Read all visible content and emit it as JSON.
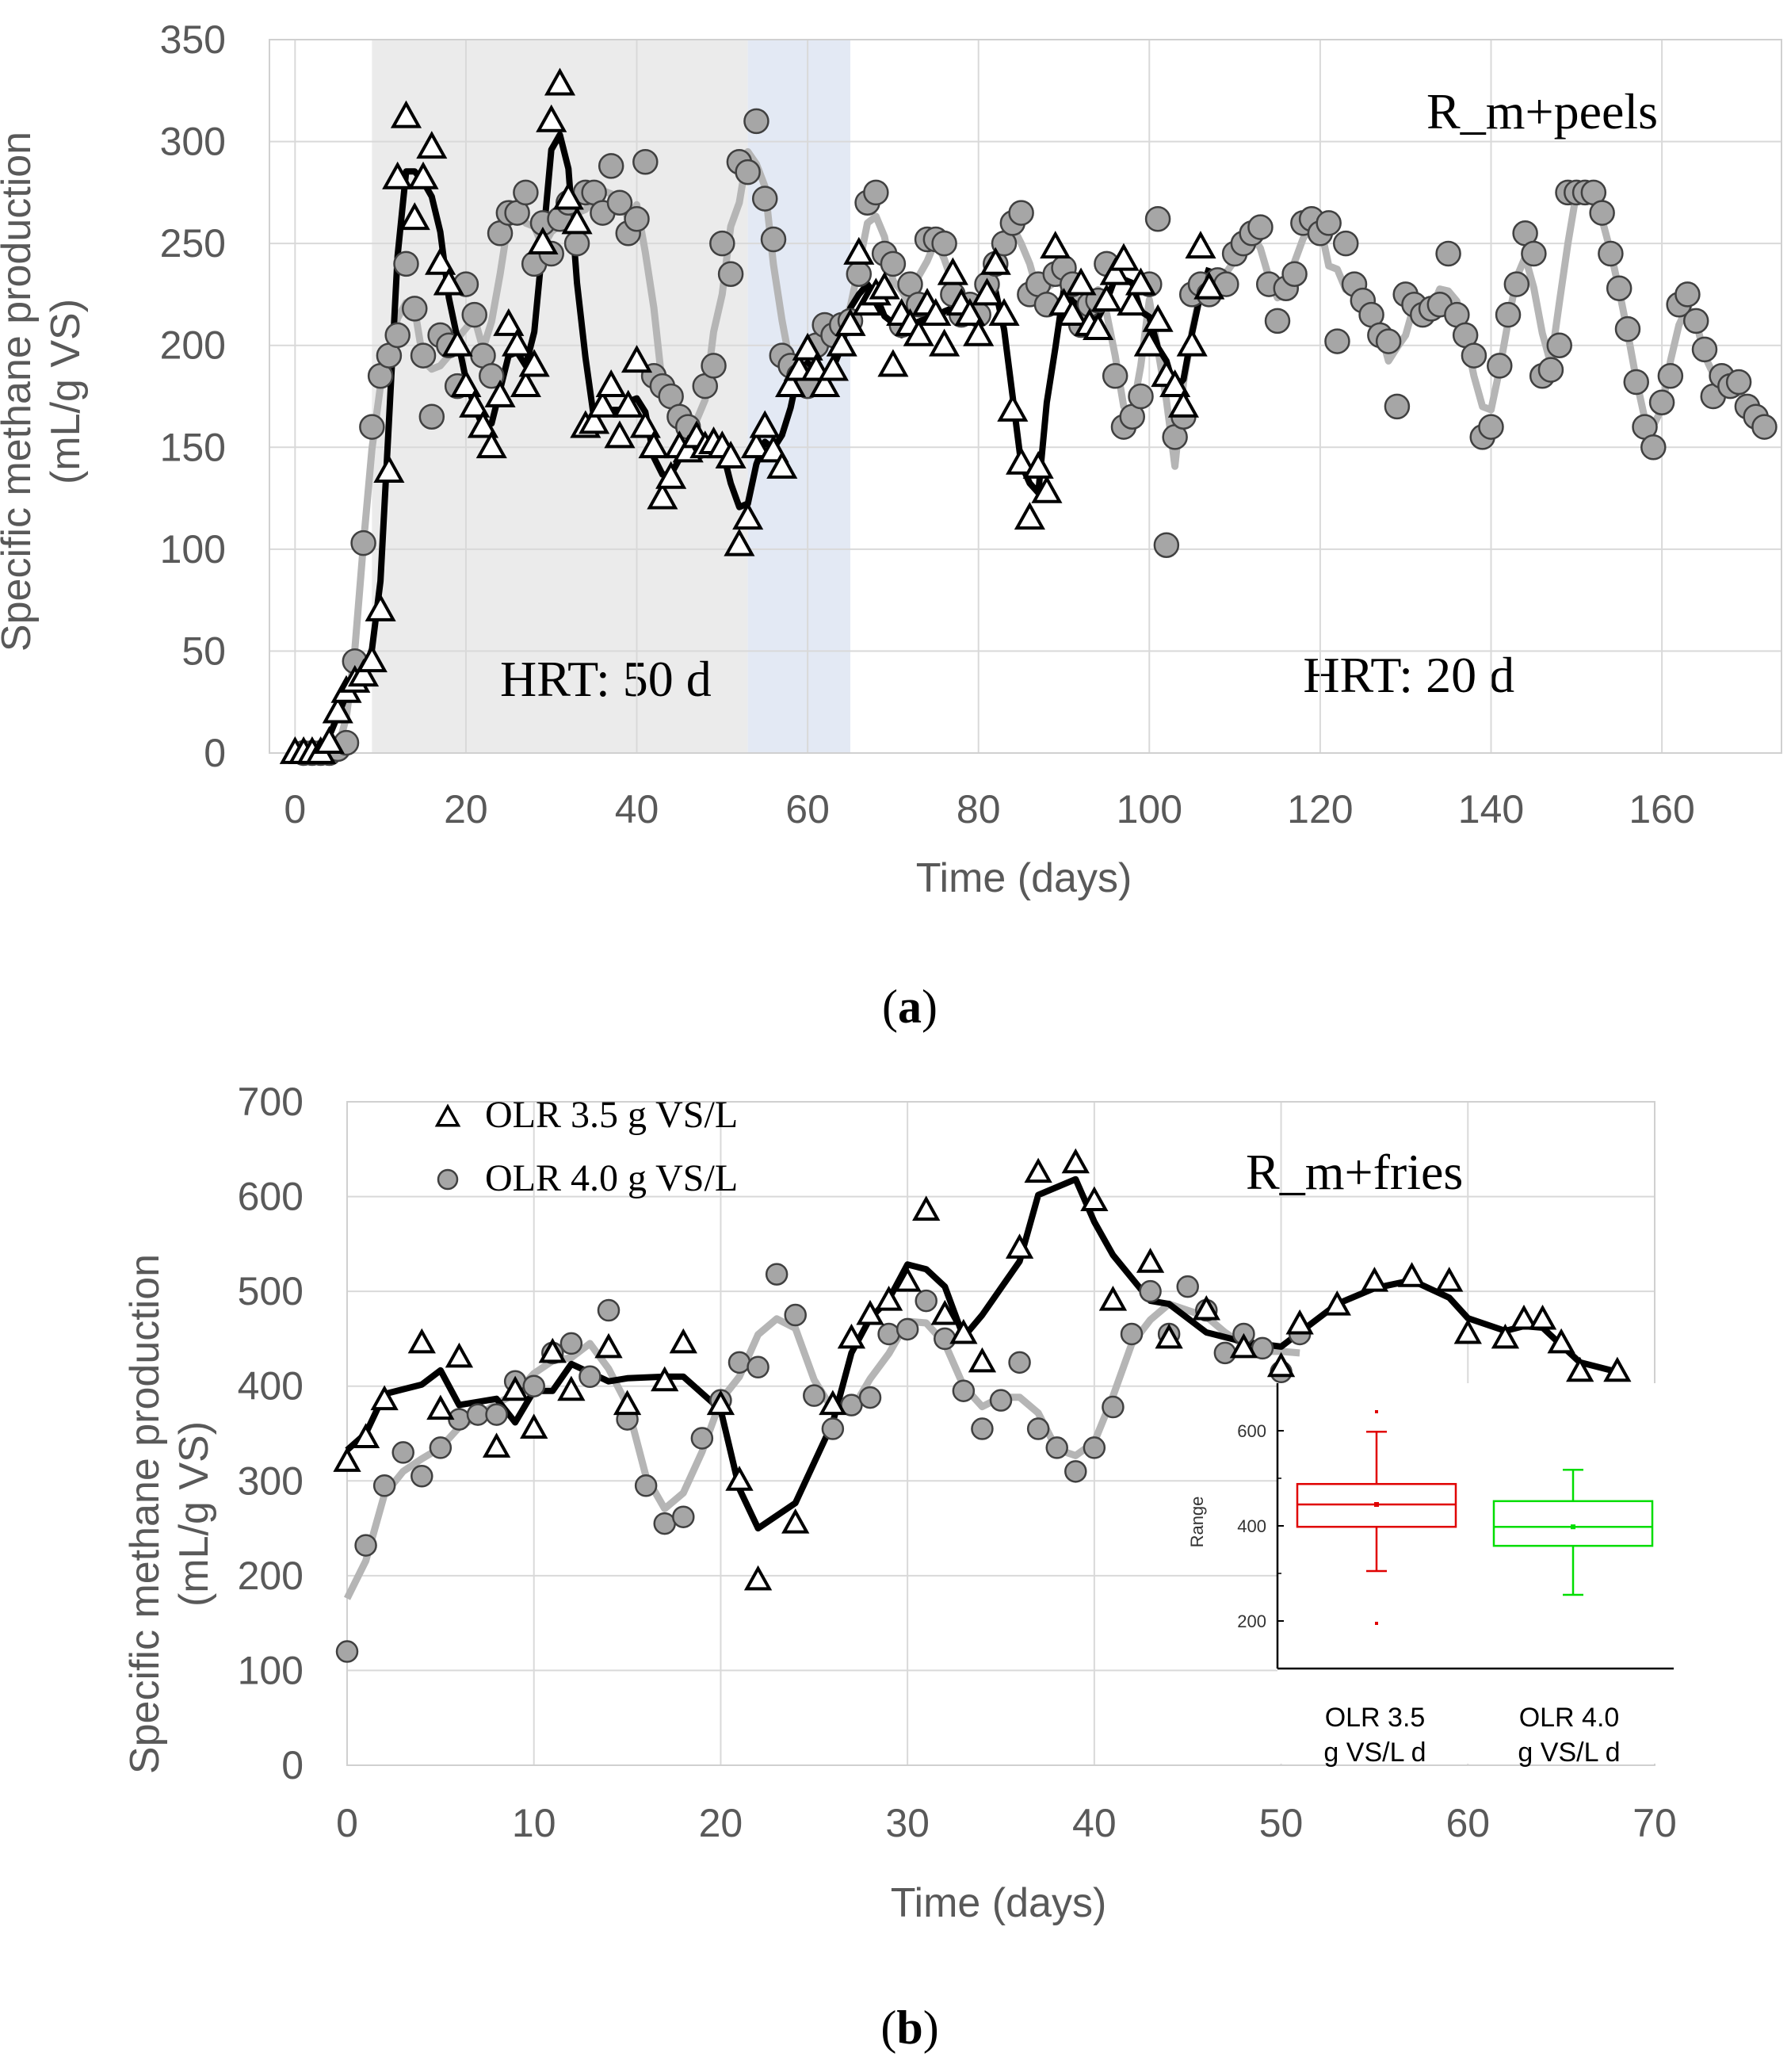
{
  "chart_data": [
    {
      "type": "line",
      "panel": "a",
      "caption": "a",
      "title": "",
      "annotation": "R_m+peels",
      "xlabel": "Time (days)",
      "ylabel": "Specific methane production",
      "ylabel2": "(mL/g VS)",
      "xlim": [
        -3,
        174
      ],
      "ylim": [
        0,
        350
      ],
      "xticks": [
        0,
        20,
        40,
        60,
        80,
        100,
        120,
        140,
        160
      ],
      "yticks": [
        0,
        50,
        100,
        150,
        200,
        250,
        300,
        350
      ],
      "grid": true,
      "regions": [
        {
          "x0": 9,
          "x1": 53,
          "color": "#ebebeb",
          "label": "HRT: 50 d",
          "label_x": 24,
          "label_y": 28
        },
        {
          "x0": 53,
          "x1": 65,
          "color": "#e3e9f4",
          "label": ""
        },
        {
          "x0": 65,
          "x1": 174,
          "color": "none",
          "label": "HRT: 20 d",
          "label_x": 118,
          "label_y": 30
        }
      ],
      "series": [
        {
          "name": "Triangles",
          "marker": "triangle",
          "x": [
            0,
            1,
            2,
            3,
            4,
            5,
            6,
            7,
            8,
            9,
            10,
            11,
            12,
            13,
            14,
            15,
            16,
            17,
            18,
            19,
            20,
            21,
            22,
            23,
            24,
            25,
            26,
            27,
            28,
            29,
            30,
            31,
            32,
            33,
            34,
            35,
            36,
            37,
            38,
            39,
            40,
            41,
            42,
            43,
            44,
            45,
            46,
            47,
            48,
            49,
            50,
            51,
            52,
            53,
            54,
            55,
            56,
            57,
            58,
            59,
            60,
            61,
            62,
            63,
            64,
            65,
            66,
            67,
            68,
            69,
            70,
            71,
            72,
            73,
            74,
            75,
            76,
            77,
            78,
            79,
            80,
            81,
            82,
            83,
            84,
            85,
            86,
            87,
            88,
            89,
            90,
            91,
            92,
            93,
            94,
            95,
            96,
            97,
            98,
            99,
            100,
            101,
            102,
            103,
            104,
            105,
            106,
            107
          ],
          "values": [
            0,
            0,
            0,
            0,
            5,
            20,
            30,
            35,
            38,
            45,
            70,
            138,
            282,
            312,
            262,
            282,
            297,
            240,
            230,
            200,
            180,
            170,
            160,
            150,
            175,
            210,
            200,
            180,
            190,
            250,
            310,
            328,
            272,
            260,
            160,
            162,
            170,
            180,
            155,
            170,
            192,
            160,
            150,
            125,
            135,
            150,
            148,
            155,
            150,
            152,
            150,
            145,
            102,
            115,
            150,
            160,
            148,
            140,
            180,
            188,
            198,
            188,
            180,
            188,
            200,
            210,
            245,
            220,
            225,
            228,
            190,
            215,
            210,
            205,
            220,
            215,
            200,
            235,
            220,
            215,
            205,
            225,
            240,
            215,
            168,
            142,
            115,
            140,
            128,
            248,
            220,
            215,
            230,
            210,
            208,
            222,
            235,
            242,
            220,
            230,
            200,
            212,
            185,
            180,
            170,
            200,
            248,
            228
          ]
        },
        {
          "name": "Circles",
          "marker": "circle",
          "x": [
            1,
            2,
            3,
            4,
            5,
            6,
            7,
            8,
            9,
            10,
            11,
            12,
            13,
            14,
            15,
            16,
            17,
            18,
            19,
            20,
            21,
            22,
            23,
            24,
            25,
            26,
            27,
            28,
            29,
            30,
            31,
            32,
            33,
            34,
            35,
            36,
            37,
            38,
            39,
            40,
            41,
            42,
            43,
            44,
            45,
            46,
            47,
            48,
            49,
            50,
            51,
            52,
            53,
            54,
            55,
            56,
            57,
            58,
            59,
            60,
            61,
            62,
            63,
            64,
            65,
            66,
            67,
            68,
            69,
            70,
            71,
            72,
            73,
            74,
            75,
            76,
            77,
            78,
            79,
            80,
            81,
            82,
            83,
            84,
            85,
            86,
            87,
            88,
            89,
            90,
            91,
            92,
            93,
            94,
            95,
            96,
            97,
            98,
            99,
            100,
            101,
            102,
            103,
            104,
            105,
            106,
            107,
            108,
            109,
            110,
            111,
            112,
            113,
            114,
            115,
            116,
            117,
            118,
            119,
            120,
            121,
            122,
            123,
            124,
            125,
            126,
            127,
            128,
            129,
            130,
            131,
            132,
            133,
            134,
            135,
            136,
            137,
            138,
            139,
            140,
            141,
            142,
            143,
            144,
            145,
            146,
            147,
            148,
            149,
            150,
            151,
            152,
            153,
            154,
            155,
            156,
            157,
            158,
            159,
            160,
            161,
            162,
            163,
            164,
            165,
            166,
            167,
            168,
            169,
            170,
            171,
            172
          ],
          "values": [
            0,
            0,
            0,
            0,
            2,
            5,
            45,
            103,
            160,
            185,
            195,
            205,
            240,
            218,
            195,
            165,
            205,
            200,
            180,
            230,
            215,
            195,
            185,
            255,
            265,
            265,
            275,
            240,
            260,
            245,
            262,
            270,
            250,
            275,
            275,
            265,
            288,
            270,
            255,
            262,
            290,
            185,
            180,
            175,
            165,
            160,
            150,
            180,
            190,
            250,
            235,
            290,
            285,
            310,
            272,
            252,
            195,
            190,
            185,
            180,
            200,
            210,
            205,
            210,
            212,
            235,
            270,
            275,
            245,
            240,
            210,
            230,
            220,
            252,
            252,
            250,
            225,
            215,
            220,
            215,
            230,
            240,
            250,
            260,
            265,
            225,
            230,
            220,
            235,
            238,
            230,
            210,
            220,
            222,
            240,
            185,
            160,
            165,
            175,
            230,
            262,
            102,
            155,
            165,
            225,
            230,
            225,
            232,
            230,
            245,
            250,
            255,
            258,
            230,
            212,
            228,
            235,
            260,
            262,
            255,
            260,
            202,
            250,
            230,
            222,
            215,
            205,
            202,
            170,
            225,
            220,
            215,
            218,
            220,
            245,
            215,
            205,
            195,
            155,
            160,
            190,
            215,
            230,
            255,
            245,
            185,
            188,
            200,
            275,
            275,
            275,
            275,
            265,
            245,
            228,
            208,
            182,
            160,
            150,
            172,
            185,
            220,
            225,
            212,
            198,
            175,
            185,
            180,
            182,
            170,
            165,
            160
          ]
        }
      ]
    },
    {
      "type": "line",
      "panel": "b",
      "caption": "b",
      "title": "",
      "annotation": "R_m+fries",
      "xlabel": "Time (days)",
      "ylabel": "Specific methane production",
      "ylabel2": "(mL/g VS)",
      "xlim": [
        0,
        70
      ],
      "ylim": [
        0,
        700
      ],
      "xticks": [
        0,
        10,
        20,
        30,
        40,
        50,
        60,
        70
      ],
      "yticks": [
        0,
        100,
        200,
        300,
        400,
        500,
        600,
        700
      ],
      "grid": true,
      "legend": [
        "OLR 3.5 g VS/L",
        "OLR 4.0 g VS/L"
      ],
      "legend_position": "top-left",
      "series": [
        {
          "name": "OLR 3.5 g VS/L",
          "marker": "triangle",
          "x": [
            0,
            1,
            2,
            4,
            5,
            6,
            8,
            9,
            10,
            11,
            12,
            14,
            15,
            17,
            18,
            20,
            21,
            22,
            24,
            26,
            27,
            28,
            29,
            30,
            31,
            32,
            33,
            34,
            36,
            37,
            39,
            40,
            41,
            43,
            44,
            46,
            48,
            50,
            51,
            53,
            55,
            57,
            59,
            60,
            62,
            63,
            64,
            65,
            66,
            68
          ],
          "values": [
            320,
            345,
            385,
            445,
            375,
            430,
            335,
            395,
            355,
            435,
            395,
            440,
            380,
            405,
            445,
            380,
            300,
            195,
            255,
            380,
            450,
            475,
            490,
            510,
            585,
            475,
            455,
            425,
            545,
            625,
            635,
            595,
            490,
            530,
            450,
            480,
            440,
            420,
            465,
            485,
            510,
            515,
            510,
            455,
            450,
            470,
            470,
            445,
            415,
            415
          ]
        },
        {
          "name": "OLR 4.0 g VS/L",
          "marker": "circle",
          "x": [
            0,
            1,
            2,
            3,
            4,
            5,
            6,
            7,
            8,
            9,
            10,
            11,
            12,
            13,
            14,
            15,
            16,
            17,
            18,
            19,
            20,
            21,
            22,
            23,
            24,
            25,
            26,
            27,
            28,
            29,
            30,
            31,
            32,
            33,
            34,
            35,
            36,
            37,
            38,
            39,
            40,
            41,
            42,
            43,
            44,
            45,
            46,
            47,
            48,
            49,
            50,
            51
          ],
          "values": [
            120,
            232,
            295,
            330,
            305,
            335,
            365,
            370,
            370,
            405,
            400,
            435,
            445,
            410,
            480,
            365,
            295,
            255,
            262,
            345,
            385,
            425,
            420,
            518,
            475,
            390,
            355,
            380,
            388,
            455,
            460,
            490,
            450,
            395,
            355,
            385,
            425,
            355,
            335,
            310,
            335,
            378,
            455,
            500,
            455,
            505,
            480,
            435,
            455,
            440,
            415,
            455
          ]
        }
      ],
      "inset": {
        "type": "box",
        "ylabel": "Range",
        "ylim": [
          100,
          700
        ],
        "yticks": [
          200,
          400,
          600
        ],
        "categories": [
          "OLR 3.5\ng VS/L d",
          "OLR 4.0\ng VS/L d"
        ],
        "boxes": [
          {
            "name": "OLR 3.5 g VS/L d",
            "color": "#e00000",
            "whisker_low": 305,
            "q1": 398,
            "median": 445,
            "mean": 445,
            "q3": 488,
            "whisker_high": 598,
            "outliers": [
              195,
              640
            ]
          },
          {
            "name": "OLR 4.0 g VS/L d",
            "color": "#00dd00",
            "whisker_low": 255,
            "q1": 358,
            "median": 398,
            "mean": 398,
            "q3": 452,
            "whisker_high": 518,
            "outliers": []
          }
        ],
        "labels": [
          {
            "line1": "OLR 3.5",
            "line2": "g VS/L d"
          },
          {
            "line1": "OLR 4.0",
            "line2": "g VS/L d"
          }
        ]
      }
    }
  ]
}
